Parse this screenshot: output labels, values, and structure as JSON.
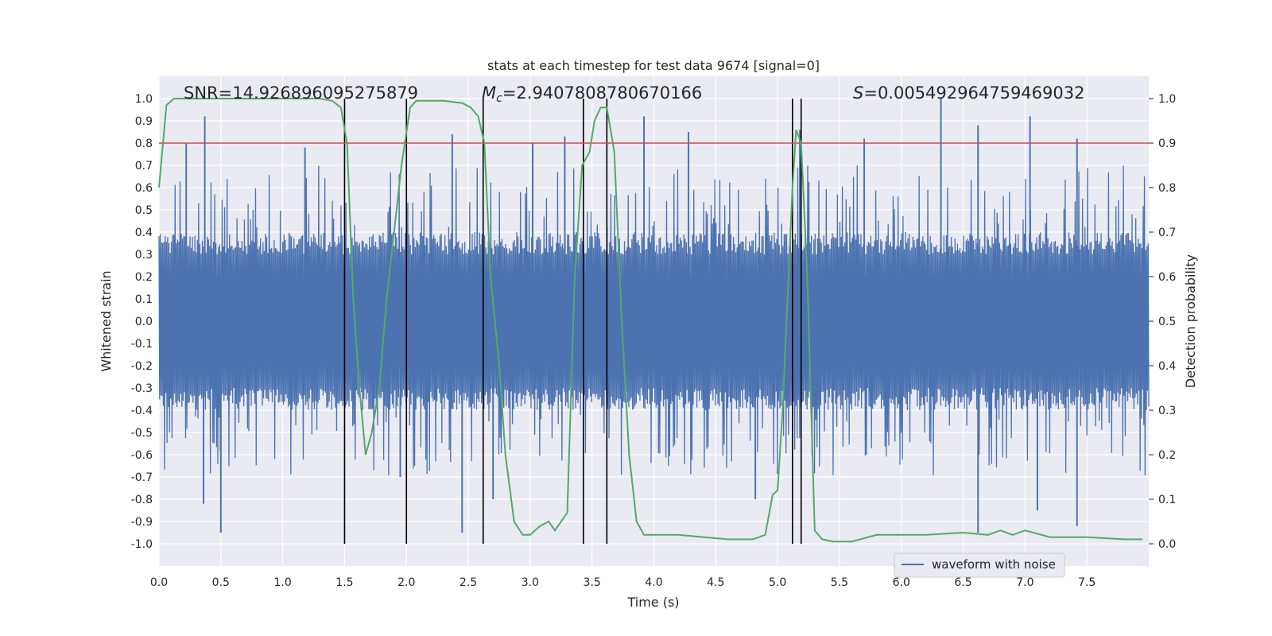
{
  "chart_data": {
    "type": "line",
    "title": "stats at each timestep for test data 9674 [signal=0]",
    "xlabel": "Time (s)",
    "ylabel_left": "Whitened strain",
    "ylabel_right": "Detection probability",
    "xlim": [
      0,
      8
    ],
    "ylim_left": [
      -1.1,
      1.1
    ],
    "ylim_right": [
      -0.05,
      1.05
    ],
    "x_ticks": [
      "0.0",
      "0.5",
      "1.0",
      "1.5",
      "2.0",
      "2.5",
      "3.0",
      "3.5",
      "4.0",
      "4.5",
      "5.0",
      "5.5",
      "6.0",
      "6.5",
      "7.0",
      "7.5"
    ],
    "y_left_ticks": [
      "1.0",
      "0.9",
      "0.8",
      "0.7",
      "0.6",
      "0.5",
      "0.4",
      "0.3",
      "0.2",
      "0.1",
      "0.0",
      "-0.1",
      "-0.2",
      "-0.3",
      "-0.4",
      "-0.5",
      "-0.6",
      "-0.7",
      "-0.8",
      "-0.9",
      "-1.0"
    ],
    "y_right_ticks": [
      "1.0",
      "0.9",
      "0.8",
      "0.7",
      "0.6",
      "0.5",
      "0.4",
      "0.3",
      "0.2",
      "0.1",
      "0.0"
    ],
    "grid": true,
    "legend": {
      "position": "lower-right",
      "entries": [
        "waveform with noise"
      ]
    },
    "annotations": {
      "snr": "SNR=14.926896095275879",
      "mc_symbol": "M",
      "mc_sub": "c",
      "mc_value": "=2.9407808780670166",
      "s_symbol": "S",
      "s_value": "=0.005492964759469032"
    },
    "threshold_right": 0.9,
    "vertical_lines_x": [
      1.5,
      2.0,
      2.62,
      3.43,
      3.62,
      5.12,
      5.19
    ],
    "waveform": {
      "name": "waveform with noise",
      "x_start": 0,
      "x_end": 8,
      "samples": 1600,
      "core_amplitude": 0.4,
      "spike_peaks": [
        {
          "x": 0.37,
          "y": 0.92
        },
        {
          "x": 0.22,
          "y": 0.8
        },
        {
          "x": 1.18,
          "y": 0.78
        },
        {
          "x": 2.37,
          "y": 0.84
        },
        {
          "x": 3.02,
          "y": 0.8
        },
        {
          "x": 3.28,
          "y": 0.83
        },
        {
          "x": 3.92,
          "y": 0.92
        },
        {
          "x": 4.28,
          "y": 0.85
        },
        {
          "x": 5.18,
          "y": 0.86
        },
        {
          "x": 5.7,
          "y": 0.82
        },
        {
          "x": 6.32,
          "y": 1.0
        },
        {
          "x": 6.62,
          "y": 0.88
        },
        {
          "x": 7.04,
          "y": 0.92
        },
        {
          "x": 7.42,
          "y": 0.82
        },
        {
          "x": 0.5,
          "y": -0.95
        },
        {
          "x": 0.36,
          "y": -0.82
        },
        {
          "x": 1.95,
          "y": -0.7
        },
        {
          "x": 2.45,
          "y": -0.95
        },
        {
          "x": 2.7,
          "y": -0.8
        },
        {
          "x": 4.82,
          "y": -0.8
        },
        {
          "x": 6.62,
          "y": -0.95
        },
        {
          "x": 7.42,
          "y": -0.92
        },
        {
          "x": 7.1,
          "y": -0.85
        }
      ]
    },
    "probability": {
      "x": [
        0.0,
        0.06,
        0.12,
        0.2,
        0.3,
        0.5,
        0.7,
        0.9,
        1.1,
        1.3,
        1.4,
        1.47,
        1.52,
        1.57,
        1.62,
        1.67,
        1.72,
        1.78,
        1.84,
        1.9,
        1.96,
        2.03,
        2.08,
        2.14,
        2.3,
        2.45,
        2.52,
        2.58,
        2.63,
        2.68,
        2.75,
        2.8,
        2.87,
        2.94,
        3.0,
        3.08,
        3.15,
        3.2,
        3.3,
        3.36,
        3.42,
        3.48,
        3.52,
        3.57,
        3.62,
        3.68,
        3.74,
        3.8,
        3.86,
        3.92,
        4.0,
        4.2,
        4.4,
        4.6,
        4.8,
        4.9,
        4.96,
        5.0,
        5.04,
        5.08,
        5.12,
        5.15,
        5.19,
        5.24,
        5.3,
        5.36,
        5.45,
        5.6,
        5.8,
        6.0,
        6.2,
        6.5,
        6.7,
        6.8,
        6.9,
        7.0,
        7.2,
        7.5,
        7.8,
        7.95
      ],
      "y": [
        0.8,
        0.985,
        1.0,
        1.0,
        1.0,
        1.0,
        1.0,
        1.0,
        1.0,
        1.0,
        0.995,
        0.98,
        0.9,
        0.55,
        0.35,
        0.2,
        0.25,
        0.35,
        0.55,
        0.7,
        0.85,
        0.98,
        0.995,
        0.995,
        0.995,
        0.99,
        0.98,
        0.96,
        0.9,
        0.6,
        0.4,
        0.2,
        0.05,
        0.02,
        0.02,
        0.04,
        0.05,
        0.03,
        0.07,
        0.6,
        0.85,
        0.88,
        0.95,
        0.98,
        0.98,
        0.88,
        0.5,
        0.2,
        0.05,
        0.02,
        0.02,
        0.02,
        0.015,
        0.01,
        0.01,
        0.02,
        0.11,
        0.12,
        0.3,
        0.55,
        0.8,
        0.93,
        0.9,
        0.6,
        0.03,
        0.01,
        0.005,
        0.005,
        0.02,
        0.02,
        0.02,
        0.025,
        0.02,
        0.03,
        0.02,
        0.03,
        0.015,
        0.015,
        0.01,
        0.01
      ]
    },
    "colors": {
      "waveform": "#4c72b0",
      "probability": "#55a868",
      "threshold": "#c44e52",
      "vlines": "#000000",
      "background": "#eaeaf2",
      "grid": "#ffffff"
    }
  }
}
